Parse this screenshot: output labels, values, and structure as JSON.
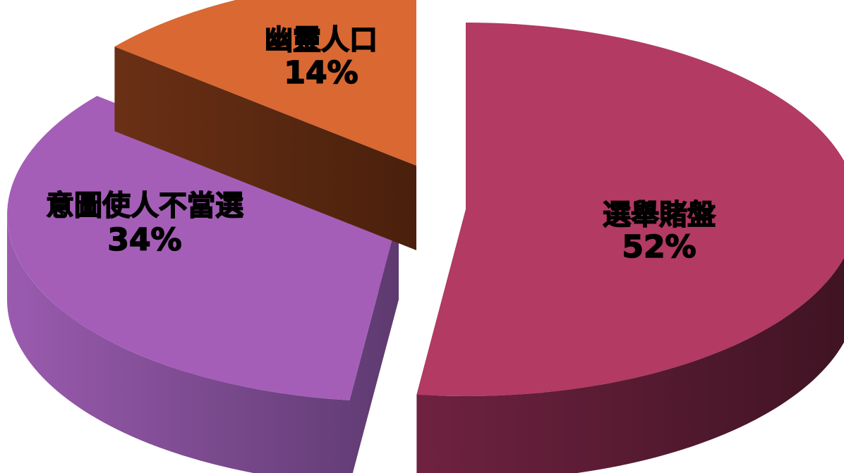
{
  "chart_data": {
    "type": "pie",
    "style": "3d-exploded",
    "slices": [
      {
        "label": "選舉賭盤",
        "value": 52,
        "value_label": "52%",
        "color": "#B23A63",
        "side_color": "#6A1E38"
      },
      {
        "label": "意圖使人不當選",
        "value": 34,
        "value_label": "34%",
        "color": "#A55EB8",
        "side_color": "#744486"
      },
      {
        "label": "幽靈人口",
        "value": 14,
        "value_label": "14%",
        "color": "#D96832",
        "side_color": "#5E2A12"
      }
    ]
  }
}
